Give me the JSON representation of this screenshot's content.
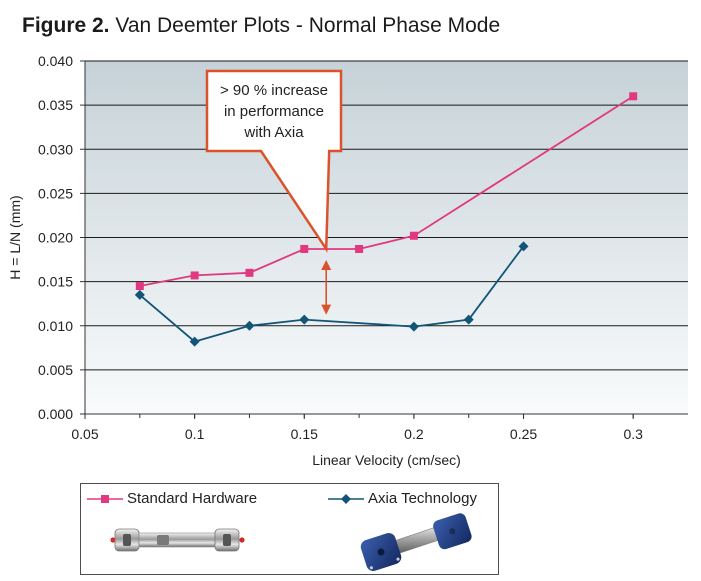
{
  "figure": {
    "label": "Figure 2.",
    "title": "Van Deemter Plots - Normal Phase Mode"
  },
  "chart_data": {
    "type": "line",
    "x_series": [
      0.075,
      0.1,
      0.125,
      0.15,
      0.175,
      0.2,
      0.225,
      0.25,
      0.3
    ],
    "series": [
      {
        "name": "Standard Hardware",
        "color": "#e2387f",
        "marker": "square",
        "x": [
          0.075,
          0.1,
          0.125,
          0.15,
          0.175,
          0.2,
          0.3
        ],
        "y": [
          0.0145,
          0.0157,
          0.016,
          0.0187,
          0.0187,
          0.0202,
          0.036
        ]
      },
      {
        "name": "Axia Technology",
        "color": "#135577",
        "marker": "diamond",
        "x": [
          0.075,
          0.1,
          0.125,
          0.15,
          0.2,
          0.225,
          0.25
        ],
        "y": [
          0.0135,
          0.0082,
          0.01,
          0.0107,
          0.0099,
          0.0107,
          0.019
        ]
      }
    ],
    "xlabel": "Linear Velocity (cm/sec)",
    "ylabel": "H = L/N (mm)",
    "xlim": [
      0.05,
      0.325
    ],
    "ylim": [
      0.0,
      0.04
    ],
    "xticks": [
      0.05,
      0.1,
      0.15,
      0.2,
      0.25,
      0.3
    ],
    "xtick_labels": [
      "0.05",
      "0.1",
      "0.15",
      "0.2",
      "0.25",
      "0.3"
    ],
    "yticks": [
      0.0,
      0.005,
      0.01,
      0.015,
      0.02,
      0.025,
      0.03,
      0.035,
      0.04
    ],
    "ytick_labels": [
      "0.000",
      "0.005",
      "0.010",
      "0.015",
      "0.020",
      "0.025",
      "0.030",
      "0.035",
      "0.040"
    ],
    "grid": "horizontal",
    "annotation": {
      "lines": [
        "> 90 % increase",
        "in performance",
        "with Axia"
      ],
      "border_color": "#d9532b",
      "arrow_color": "#d9532b",
      "points_to": {
        "x": 0.16,
        "y": 0.0187
      },
      "double_arrow": {
        "x": 0.16,
        "y_top": 0.0187,
        "y_bottom": 0.0107
      }
    },
    "plot_background": {
      "top": "#c6d2d8",
      "bottom": "#f9fbfc"
    }
  },
  "legend": {
    "items": [
      {
        "label": "Standard Hardware",
        "color": "#e2387f",
        "marker": "square"
      },
      {
        "label": "Axia Technology",
        "color": "#135577",
        "marker": "diamond"
      }
    ]
  }
}
